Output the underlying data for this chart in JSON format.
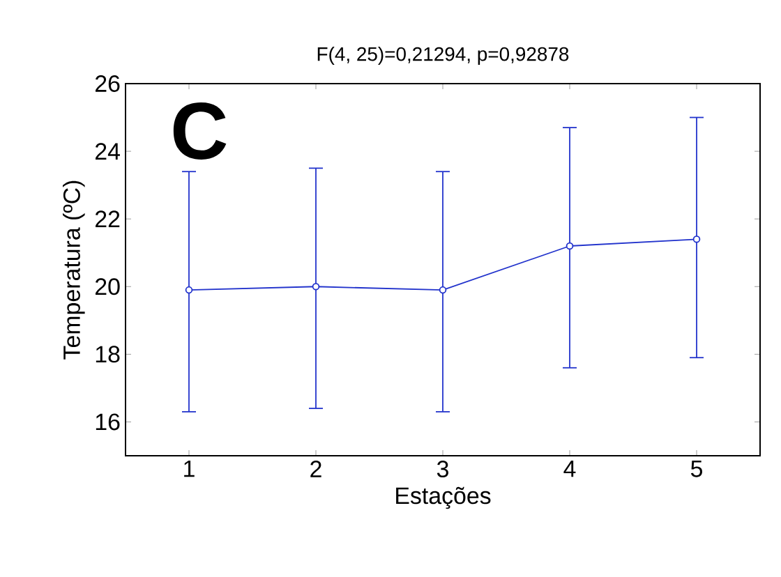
{
  "chart_data": {
    "type": "line",
    "title": "F(4, 25)=0,21294, p=0,92878",
    "xlabel": "Estações",
    "ylabel": "Temperatura (ºC)",
    "annotations": [
      "C"
    ],
    "x": [
      1,
      2,
      3,
      4,
      5
    ],
    "series": [
      {
        "color": "#2233cc",
        "values": [
          19.9,
          20.0,
          19.9,
          21.2,
          21.4
        ],
        "errors": [
          [
            16.3,
            23.4
          ],
          [
            16.4,
            23.5
          ],
          [
            16.3,
            23.4
          ],
          [
            17.6,
            24.7
          ],
          [
            17.9,
            25.0
          ]
        ]
      }
    ],
    "xlim": [
      0.5,
      5.5
    ],
    "xticks": [
      1,
      2,
      3,
      4,
      5
    ],
    "ylim": [
      15,
      26
    ],
    "yticks": [
      16,
      18,
      20,
      22,
      24,
      26
    ],
    "marker": "circle",
    "line_style": "solid"
  }
}
